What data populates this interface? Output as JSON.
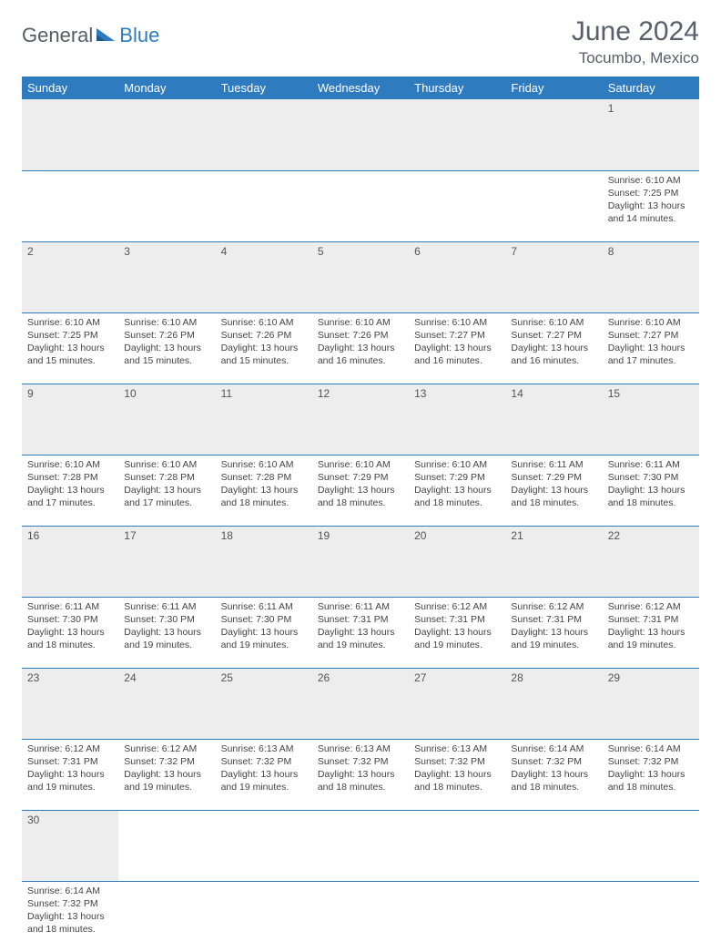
{
  "brand": {
    "part1": "General",
    "part2": "Blue",
    "icon_color": "#2f7bbf",
    "text1_color": "#555d66"
  },
  "header": {
    "title": "June 2024",
    "location": "Tocumbo, Mexico",
    "title_color": "#58606b"
  },
  "calendar": {
    "header_bg": "#2f7bbf",
    "header_fg": "#ffffff",
    "daynum_bg": "#ededed",
    "divider_color": "#2f7bbf",
    "days": [
      "Sunday",
      "Monday",
      "Tuesday",
      "Wednesday",
      "Thursday",
      "Friday",
      "Saturday"
    ],
    "weeks": [
      [
        null,
        null,
        null,
        null,
        null,
        null,
        {
          "n": "1",
          "sunrise": "Sunrise: 6:10 AM",
          "sunset": "Sunset: 7:25 PM",
          "day1": "Daylight: 13 hours",
          "day2": "and 14 minutes."
        }
      ],
      [
        {
          "n": "2",
          "sunrise": "Sunrise: 6:10 AM",
          "sunset": "Sunset: 7:25 PM",
          "day1": "Daylight: 13 hours",
          "day2": "and 15 minutes."
        },
        {
          "n": "3",
          "sunrise": "Sunrise: 6:10 AM",
          "sunset": "Sunset: 7:26 PM",
          "day1": "Daylight: 13 hours",
          "day2": "and 15 minutes."
        },
        {
          "n": "4",
          "sunrise": "Sunrise: 6:10 AM",
          "sunset": "Sunset: 7:26 PM",
          "day1": "Daylight: 13 hours",
          "day2": "and 15 minutes."
        },
        {
          "n": "5",
          "sunrise": "Sunrise: 6:10 AM",
          "sunset": "Sunset: 7:26 PM",
          "day1": "Daylight: 13 hours",
          "day2": "and 16 minutes."
        },
        {
          "n": "6",
          "sunrise": "Sunrise: 6:10 AM",
          "sunset": "Sunset: 7:27 PM",
          "day1": "Daylight: 13 hours",
          "day2": "and 16 minutes."
        },
        {
          "n": "7",
          "sunrise": "Sunrise: 6:10 AM",
          "sunset": "Sunset: 7:27 PM",
          "day1": "Daylight: 13 hours",
          "day2": "and 16 minutes."
        },
        {
          "n": "8",
          "sunrise": "Sunrise: 6:10 AM",
          "sunset": "Sunset: 7:27 PM",
          "day1": "Daylight: 13 hours",
          "day2": "and 17 minutes."
        }
      ],
      [
        {
          "n": "9",
          "sunrise": "Sunrise: 6:10 AM",
          "sunset": "Sunset: 7:28 PM",
          "day1": "Daylight: 13 hours",
          "day2": "and 17 minutes."
        },
        {
          "n": "10",
          "sunrise": "Sunrise: 6:10 AM",
          "sunset": "Sunset: 7:28 PM",
          "day1": "Daylight: 13 hours",
          "day2": "and 17 minutes."
        },
        {
          "n": "11",
          "sunrise": "Sunrise: 6:10 AM",
          "sunset": "Sunset: 7:28 PM",
          "day1": "Daylight: 13 hours",
          "day2": "and 18 minutes."
        },
        {
          "n": "12",
          "sunrise": "Sunrise: 6:10 AM",
          "sunset": "Sunset: 7:29 PM",
          "day1": "Daylight: 13 hours",
          "day2": "and 18 minutes."
        },
        {
          "n": "13",
          "sunrise": "Sunrise: 6:10 AM",
          "sunset": "Sunset: 7:29 PM",
          "day1": "Daylight: 13 hours",
          "day2": "and 18 minutes."
        },
        {
          "n": "14",
          "sunrise": "Sunrise: 6:11 AM",
          "sunset": "Sunset: 7:29 PM",
          "day1": "Daylight: 13 hours",
          "day2": "and 18 minutes."
        },
        {
          "n": "15",
          "sunrise": "Sunrise: 6:11 AM",
          "sunset": "Sunset: 7:30 PM",
          "day1": "Daylight: 13 hours",
          "day2": "and 18 minutes."
        }
      ],
      [
        {
          "n": "16",
          "sunrise": "Sunrise: 6:11 AM",
          "sunset": "Sunset: 7:30 PM",
          "day1": "Daylight: 13 hours",
          "day2": "and 18 minutes."
        },
        {
          "n": "17",
          "sunrise": "Sunrise: 6:11 AM",
          "sunset": "Sunset: 7:30 PM",
          "day1": "Daylight: 13 hours",
          "day2": "and 19 minutes."
        },
        {
          "n": "18",
          "sunrise": "Sunrise: 6:11 AM",
          "sunset": "Sunset: 7:30 PM",
          "day1": "Daylight: 13 hours",
          "day2": "and 19 minutes."
        },
        {
          "n": "19",
          "sunrise": "Sunrise: 6:11 AM",
          "sunset": "Sunset: 7:31 PM",
          "day1": "Daylight: 13 hours",
          "day2": "and 19 minutes."
        },
        {
          "n": "20",
          "sunrise": "Sunrise: 6:12 AM",
          "sunset": "Sunset: 7:31 PM",
          "day1": "Daylight: 13 hours",
          "day2": "and 19 minutes."
        },
        {
          "n": "21",
          "sunrise": "Sunrise: 6:12 AM",
          "sunset": "Sunset: 7:31 PM",
          "day1": "Daylight: 13 hours",
          "day2": "and 19 minutes."
        },
        {
          "n": "22",
          "sunrise": "Sunrise: 6:12 AM",
          "sunset": "Sunset: 7:31 PM",
          "day1": "Daylight: 13 hours",
          "day2": "and 19 minutes."
        }
      ],
      [
        {
          "n": "23",
          "sunrise": "Sunrise: 6:12 AM",
          "sunset": "Sunset: 7:31 PM",
          "day1": "Daylight: 13 hours",
          "day2": "and 19 minutes."
        },
        {
          "n": "24",
          "sunrise": "Sunrise: 6:12 AM",
          "sunset": "Sunset: 7:32 PM",
          "day1": "Daylight: 13 hours",
          "day2": "and 19 minutes."
        },
        {
          "n": "25",
          "sunrise": "Sunrise: 6:13 AM",
          "sunset": "Sunset: 7:32 PM",
          "day1": "Daylight: 13 hours",
          "day2": "and 19 minutes."
        },
        {
          "n": "26",
          "sunrise": "Sunrise: 6:13 AM",
          "sunset": "Sunset: 7:32 PM",
          "day1": "Daylight: 13 hours",
          "day2": "and 18 minutes."
        },
        {
          "n": "27",
          "sunrise": "Sunrise: 6:13 AM",
          "sunset": "Sunset: 7:32 PM",
          "day1": "Daylight: 13 hours",
          "day2": "and 18 minutes."
        },
        {
          "n": "28",
          "sunrise": "Sunrise: 6:14 AM",
          "sunset": "Sunset: 7:32 PM",
          "day1": "Daylight: 13 hours",
          "day2": "and 18 minutes."
        },
        {
          "n": "29",
          "sunrise": "Sunrise: 6:14 AM",
          "sunset": "Sunset: 7:32 PM",
          "day1": "Daylight: 13 hours",
          "day2": "and 18 minutes."
        }
      ],
      [
        {
          "n": "30",
          "sunrise": "Sunrise: 6:14 AM",
          "sunset": "Sunset: 7:32 PM",
          "day1": "Daylight: 13 hours",
          "day2": "and 18 minutes."
        },
        null,
        null,
        null,
        null,
        null,
        null
      ]
    ]
  }
}
